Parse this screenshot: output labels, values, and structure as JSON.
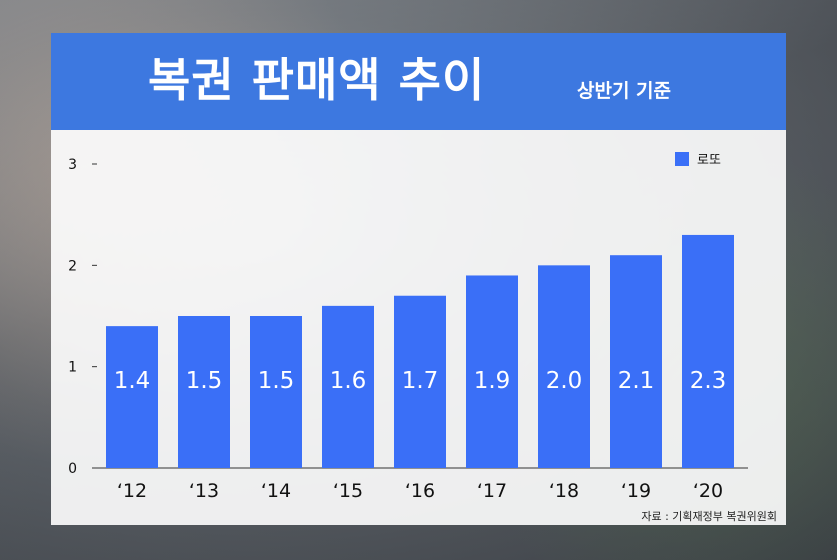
{
  "header": {
    "title": "복권 판매액 추이",
    "subtitle": "상반기 기준"
  },
  "source": "자료 : 기획재정부 복권위원회",
  "chart_data": {
    "type": "bar",
    "categories": [
      "‘12",
      "‘13",
      "‘14",
      "‘15",
      "‘16",
      "‘17",
      "‘18",
      "‘19",
      "‘20"
    ],
    "series": [
      {
        "name": "로또",
        "values": [
          1.4,
          1.5,
          1.5,
          1.6,
          1.7,
          1.9,
          2.0,
          2.1,
          2.3
        ],
        "color": "#3a6ff7"
      }
    ],
    "data_labels": [
      "1.4",
      "1.5",
      "1.5",
      "1.6",
      "1.7",
      "1.9",
      "2.0",
      "2.1",
      "2.3"
    ],
    "yticks": [
      0,
      1,
      2,
      3
    ],
    "ylim": [
      0,
      3
    ],
    "legend": "top-right",
    "grid": false
  }
}
